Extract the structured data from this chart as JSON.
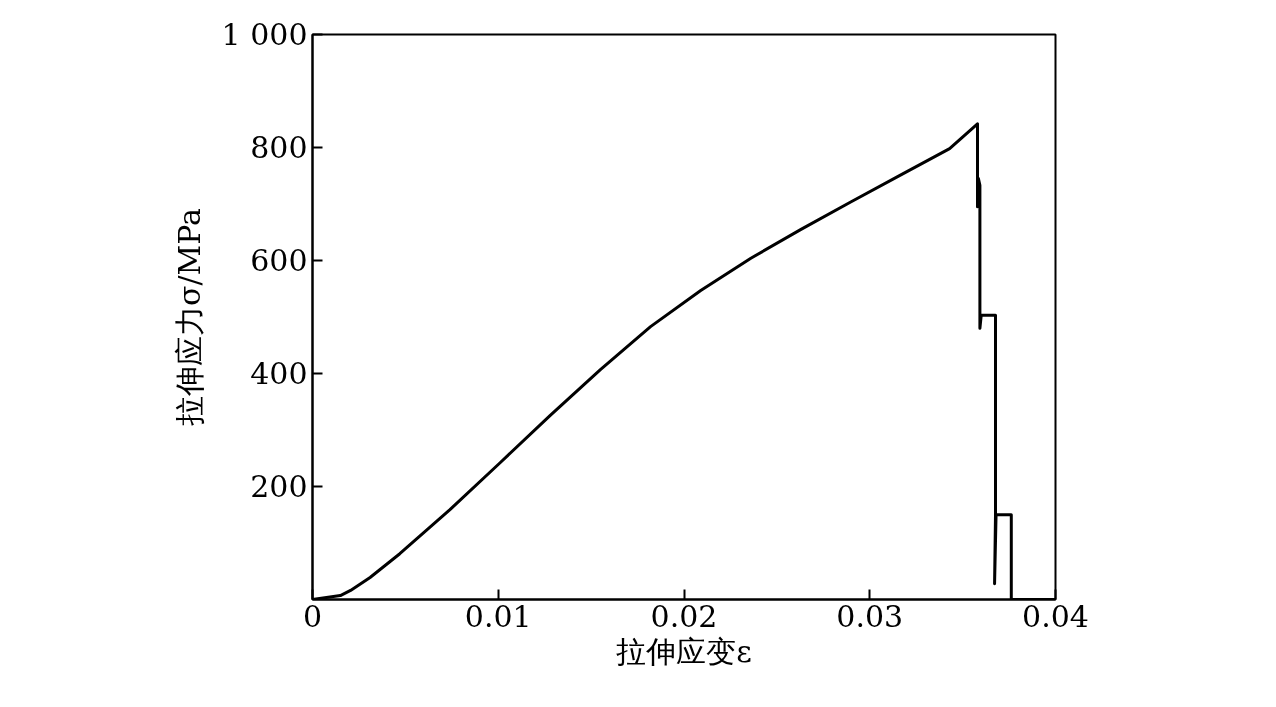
{
  "chart_data": {
    "type": "line",
    "xlabel": "拉伸应变ε",
    "ylabel": "拉伸应力σ/MPa",
    "xlim": [
      0,
      0.04
    ],
    "ylim": [
      0,
      1000
    ],
    "xticks": [
      0,
      0.01,
      0.02,
      0.03,
      0.04
    ],
    "yticks": [
      200,
      400,
      600,
      800,
      {
        "value": 1000,
        "label": "1 000"
      }
    ],
    "grid": false,
    "marker": "none",
    "line_style": "solid",
    "series": [
      {
        "color": "#000000",
        "x": [
          0,
          0.0015,
          0.00205,
          0.0031,
          0.0047,
          0.0074,
          0.0101,
          0.0128,
          0.0155,
          0.0182,
          0.0209,
          0.0236,
          0.0263,
          0.029,
          0.0317,
          0.0343,
          0.0358,
          0.0358,
          0.03585,
          0.03593,
          0.03593,
          0.036,
          0.03677,
          0.03677,
          0.03672,
          0.0368,
          0.03762,
          0.03762,
          0.04
        ],
        "values": [
          0,
          7,
          16,
          39,
          81,
          159,
          242,
          326,
          407,
          483,
          547,
          604,
          655,
          704,
          752,
          798,
          842,
          695,
          745,
          733,
          480,
          503,
          503,
          150,
          28,
          150,
          150,
          0,
          0
        ]
      }
    ]
  }
}
